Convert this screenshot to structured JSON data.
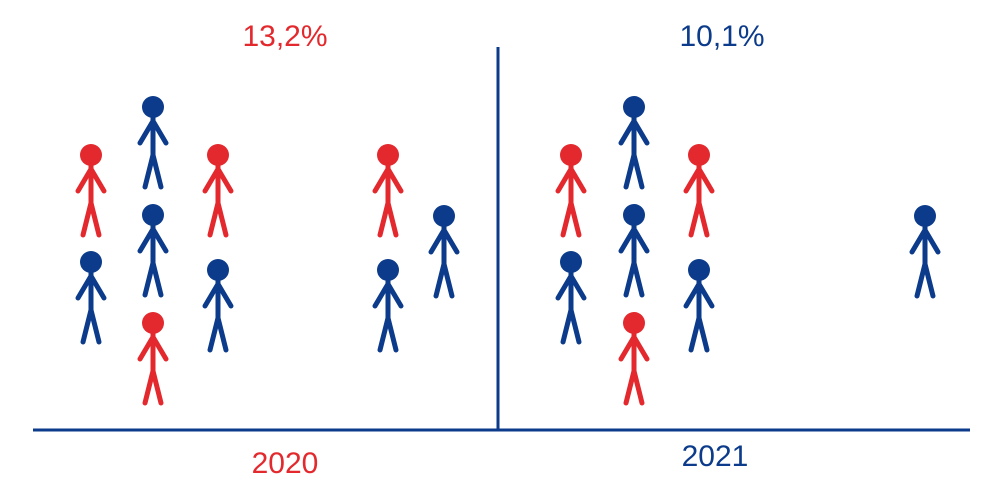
{
  "panels": [
    {
      "label": "13,2%",
      "year": "2020"
    },
    {
      "label": "10,1%",
      "year": "2021"
    }
  ]
}
